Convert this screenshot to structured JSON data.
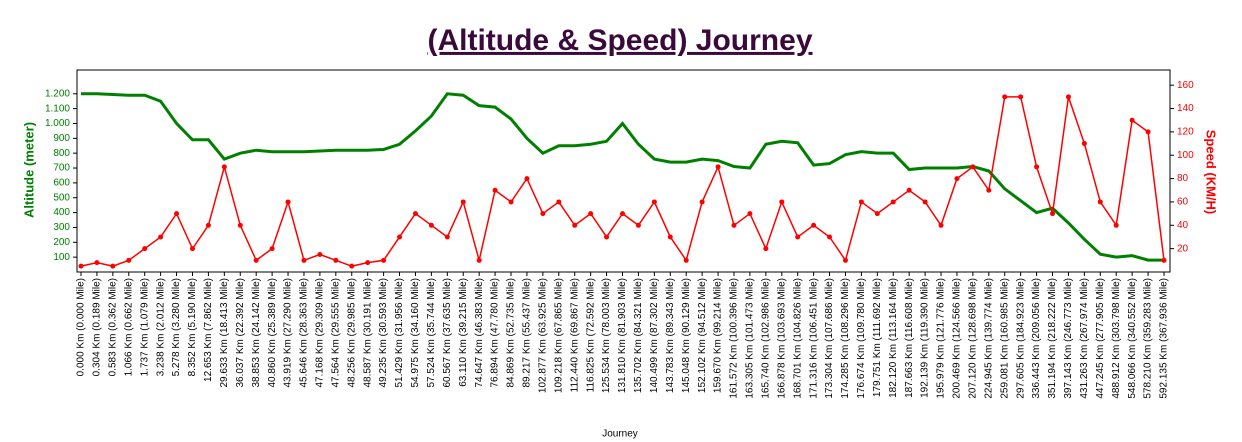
{
  "chart_data": {
    "type": "line",
    "title": "(Altitude & Speed) Journey",
    "xlabel": "Journey",
    "ylabel": "Altitude (meter)",
    "y2label": "Speed (KM/H)",
    "categories": [
      "0.000 Km (0.000 Mile)",
      "0.304 Km (0.189 Mile)",
      "0.583 Km (0.362 Mile)",
      "1.066 Km (0.662 Mile)",
      "1.737 Km (1.079 Mile)",
      "3.238 Km (2.012 Mile)",
      "5.278 Km (3.280 Mile)",
      "8.352 Km (5.190 Mile)",
      "12.653 Km (7.862 Mile)",
      "29.633 Km (18.413 Mile)",
      "36.037 Km (22.392 Mile)",
      "38.853 Km (24.142 Mile)",
      "40.860 Km (25.389 Mile)",
      "43.919 Km (27.290 Mile)",
      "45.646 Km (28.363 Mile)",
      "47.168 Km (29.309 Mile)",
      "47.564 Km (29.555 Mile)",
      "48.256 Km (29.985 Mile)",
      "48.587 Km (30.191 Mile)",
      "49.235 Km (30.593 Mile)",
      "51.429 Km (31.956 Mile)",
      "54.975 Km (34.160 Mile)",
      "57.524 Km (35.744 Mile)",
      "60.567 Km (37.635 Mile)",
      "63.110 Km (39.215 Mile)",
      "74.647 Km (46.383 Mile)",
      "76.894 Km (47.780 Mile)",
      "84.869 Km (52.735 Mile)",
      "89.217 Km (55.437 Mile)",
      "102.877 Km (63.925 Mile)",
      "109.218 Km (67.865 Mile)",
      "112.440 Km (69.867 Mile)",
      "116.825 Km (72.592 Mile)",
      "125.534 Km (78.003 Mile)",
      "131.810 Km (81.903 Mile)",
      "135.702 Km (84.321 Mile)",
      "140.499 Km (87.302 Mile)",
      "143.783 Km (89.343 Mile)",
      "145.048 Km (90.129 Mile)",
      "152.102 Km (94.512 Mile)",
      "159.670 Km (99.214 Mile)",
      "161.572 Km (100.396 Mile)",
      "163.305 Km (101.473 Mile)",
      "165.740 Km (102.986 Mile)",
      "166.878 Km (103.693 Mile)",
      "168.701 Km (104.826 Mile)",
      "171.316 Km (106.451 Mile)",
      "173.304 Km (107.686 Mile)",
      "174.285 Km (108.296 Mile)",
      "176.674 Km (109.780 Mile)",
      "179.751 Km (111.692 Mile)",
      "182.120 Km (113.164 Mile)",
      "187.663 Km (116.608 Mile)",
      "192.139 Km (119.390 Mile)",
      "195.979 Km (121.776 Mile)",
      "200.469 Km (124.566 Mile)",
      "207.120 Km (128.698 Mile)",
      "224.945 Km (139.774 Mile)",
      "259.081 Km (160.985 Mile)",
      "297.605 Km (184.923 Mile)",
      "336.443 Km (209.056 Mile)",
      "351.194 Km (218.222 Mile)",
      "397.143 Km (246.773 Mile)",
      "431.263 Km (267.974 Mile)",
      "447.245 Km (277.905 Mile)",
      "488.912 Km (303.798 Mile)",
      "548.066 Km (340.552 Mile)",
      "578.210 Km (359.283 Mile)",
      "592.135 Km (367.936 Mile)"
    ],
    "series": [
      {
        "color": "#008000",
        "values": [
          1200,
          1200,
          1195,
          1190,
          1190,
          1150,
          1000,
          890,
          890,
          760,
          800,
          820,
          810,
          810,
          810,
          815,
          820,
          820,
          820,
          825,
          860,
          950,
          1050,
          1200,
          1190,
          1120,
          1110,
          1030,
          900,
          800,
          850,
          850,
          860,
          880,
          1000,
          860,
          760,
          740,
          740,
          760,
          750,
          710,
          700,
          860,
          880,
          870,
          720,
          730,
          790,
          810,
          800,
          800,
          690,
          700,
          700,
          700,
          710,
          680,
          560,
          480,
          400,
          430,
          330,
          220,
          120,
          100,
          110,
          80,
          80
        ]
      },
      {
        "color": "#ff0000",
        "axis": "y2",
        "values": [
          5,
          8,
          5,
          10,
          20,
          30,
          50,
          20,
          40,
          90,
          40,
          10,
          20,
          60,
          10,
          15,
          10,
          5,
          8,
          10,
          30,
          50,
          40,
          30,
          60,
          10,
          70,
          60,
          80,
          50,
          60,
          40,
          50,
          30,
          50,
          40,
          60,
          30,
          10,
          60,
          90,
          40,
          50,
          20,
          60,
          30,
          40,
          30,
          10,
          60,
          50,
          60,
          70,
          60,
          40,
          80,
          90,
          70,
          150,
          150,
          90,
          50,
          150,
          110,
          60,
          40,
          130,
          120,
          10
        ]
      }
    ],
    "ylim": [
      0,
      1360
    ],
    "yticks": [
      100,
      200,
      300,
      400,
      500,
      600,
      700,
      800,
      900,
      {
        "value": 1000,
        "label": "1.000"
      },
      {
        "value": 1100,
        "label": "1.100"
      },
      {
        "value": 1200,
        "label": "1.200"
      }
    ],
    "y2lim": [
      0,
      173
    ],
    "y2ticks": [
      20,
      40,
      60,
      80,
      100,
      120,
      140,
      160
    ]
  }
}
